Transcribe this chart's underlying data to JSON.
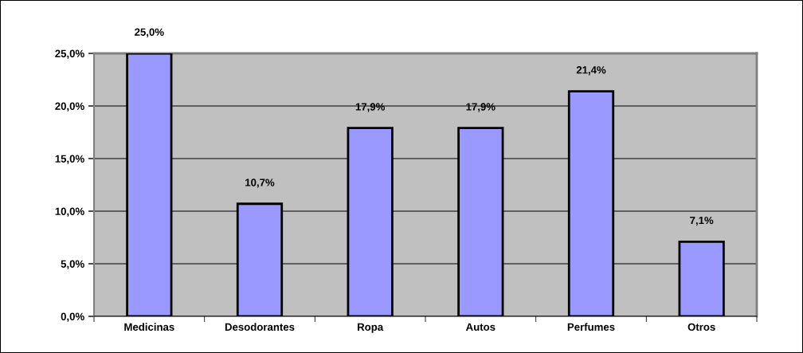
{
  "chart_data": {
    "type": "bar",
    "categories": [
      "Medicinas",
      "Desodorantes",
      "Ropa",
      "Autos",
      "Perfumes",
      "Otros"
    ],
    "values": [
      25.0,
      10.7,
      17.9,
      17.9,
      21.4,
      7.1
    ],
    "value_labels": [
      "25,0%",
      "10,7%",
      "17,9%",
      "17,9%",
      "21,4%",
      "7,1%"
    ],
    "color": "#9999ff",
    "ylim": [
      0,
      25
    ],
    "yticks": [
      {
        "value": 0,
        "label": "0,0%"
      },
      {
        "value": 5,
        "label": "5,0%"
      },
      {
        "value": 10,
        "label": "10,0%"
      },
      {
        "value": 15,
        "label": "15,0%"
      },
      {
        "value": 20,
        "label": "20,0%"
      },
      {
        "value": 25,
        "label": "25,0%"
      }
    ],
    "grid": "y",
    "legend": false
  }
}
